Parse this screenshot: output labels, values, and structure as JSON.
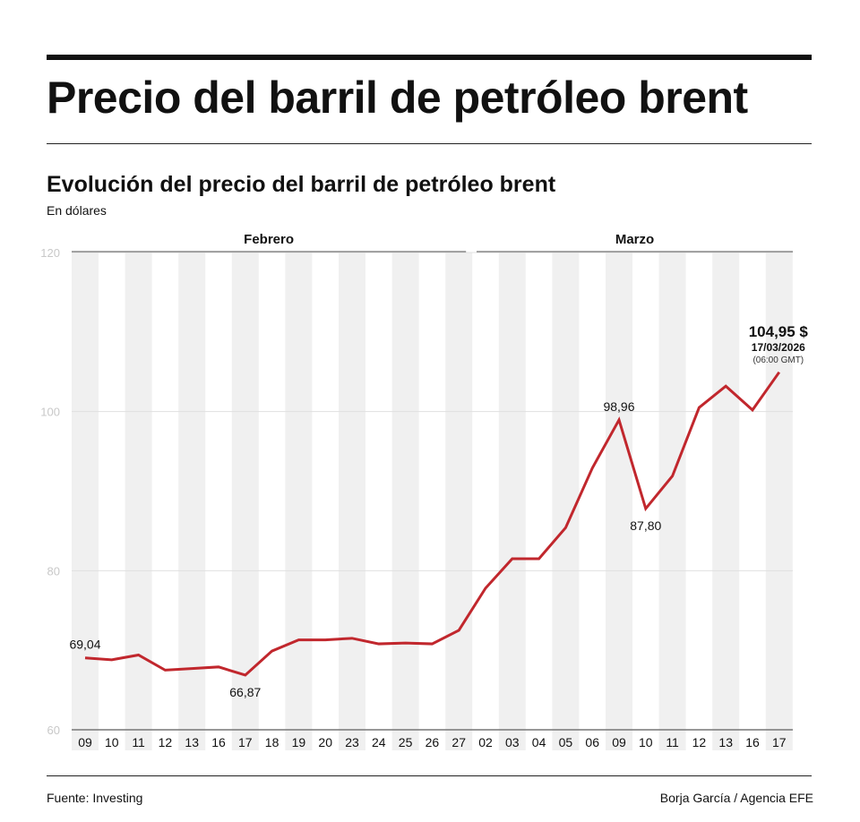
{
  "header": {
    "title": "Precio del barril de petróleo brent"
  },
  "chart_data": {
    "type": "line",
    "title": "Evolución del precio del barril de petróleo brent",
    "ylabel": "En dólares",
    "ylim": [
      60,
      120
    ],
    "yticks": [
      60,
      80,
      100,
      120
    ],
    "grid": true,
    "groups": [
      {
        "label": "Febrero",
        "start": 0,
        "end": 14
      },
      {
        "label": "Marzo",
        "start": 15,
        "end": 26
      }
    ],
    "categories": [
      "09",
      "10",
      "11",
      "12",
      "13",
      "16",
      "17",
      "18",
      "19",
      "20",
      "23",
      "24",
      "25",
      "26",
      "27",
      "02",
      "03",
      "04",
      "05",
      "06",
      "09",
      "10",
      "11",
      "12",
      "13",
      "16",
      "17"
    ],
    "values": [
      69.04,
      68.8,
      69.4,
      67.5,
      67.7,
      67.9,
      66.87,
      69.9,
      71.3,
      71.3,
      71.5,
      70.8,
      70.9,
      70.8,
      72.5,
      77.8,
      81.5,
      81.5,
      85.4,
      92.9,
      98.96,
      87.8,
      91.9,
      100.5,
      103.2,
      100.2,
      104.95
    ],
    "line_color": "#c1272d",
    "annotations": [
      {
        "index": 0,
        "text": "69,04",
        "position": "above"
      },
      {
        "index": 6,
        "text": "66,87",
        "position": "below"
      },
      {
        "index": 20,
        "text": "98,96",
        "position": "above"
      },
      {
        "index": 21,
        "text": "87,80",
        "position": "below"
      }
    ],
    "last_label": {
      "value": "104,95 $",
      "date": "17/03/2026",
      "time": "(06:00 GMT)"
    }
  },
  "footer": {
    "source": "Fuente: Investing",
    "credit": "Borja García / Agencia EFE"
  }
}
